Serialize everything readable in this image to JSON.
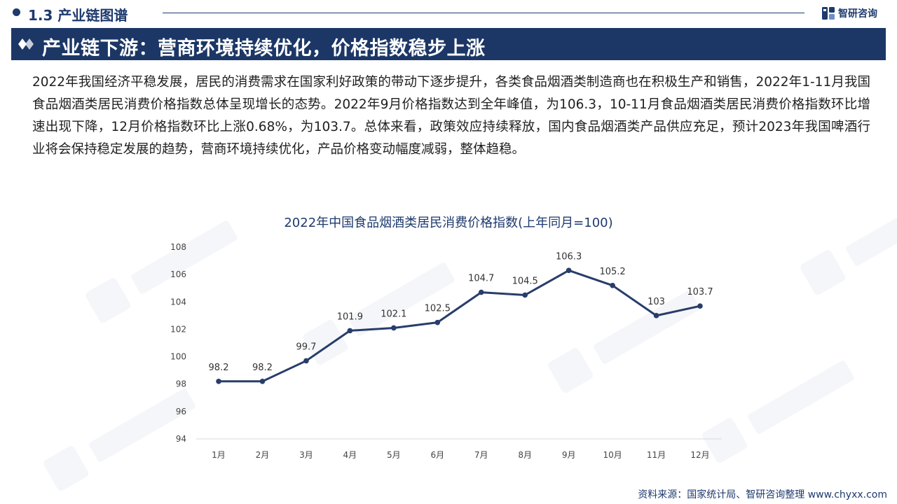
{
  "header": {
    "section_label": "1.3 产业链图谱",
    "brand_name": "智研咨询"
  },
  "banner": {
    "title": "产业链下游：营商环境持续优化，价格指数稳步上涨"
  },
  "body": {
    "paragraph": "2022年我国经济平稳发展，居民的消费需求在国家利好政策的带动下逐步提升，各类食品烟酒类制造商也在积极生产和销售，2022年1-11月我国食品烟酒类居民消费价格指数总体呈现增长的态势。2022年9月价格指数达到全年峰值，为106.3，10-11月食品烟酒类居民消费价格指数环比增速出现下降，12月价格指数环比上涨0.68%，为103.7。总体来看，政策效应持续释放，国内食品烟酒类产品供应充足，预计2023年我国啤酒行业将会保持稳定发展的趋势，营商环境持续优化，产品价格变动幅度减弱，整体趋稳。"
  },
  "chart_data": {
    "type": "line",
    "title": "2022年中国食品烟酒类居民消费价格指数(上年同月=100)",
    "categories": [
      "1月",
      "2月",
      "3月",
      "4月",
      "5月",
      "6月",
      "7月",
      "8月",
      "9月",
      "10月",
      "11月",
      "12月"
    ],
    "values": [
      98.2,
      98.2,
      99.7,
      101.9,
      102.1,
      102.5,
      104.7,
      104.5,
      106.3,
      105.2,
      103,
      103.7
    ],
    "data_labels": [
      "98.2",
      "98.2",
      "99.7",
      "101.9",
      "102.1",
      "102.5",
      "104.7",
      "104.5",
      "106.3",
      "105.2",
      "103",
      "103.7"
    ],
    "y_ticks": [
      "94",
      "96",
      "98",
      "100",
      "102",
      "104",
      "106",
      "108"
    ],
    "ylim": [
      94,
      108
    ],
    "grid": false,
    "legend": "none",
    "line_color": "#283d6b"
  },
  "footer": {
    "source": "资料来源：国家统计局、智研咨询整理  www.chyxx.com"
  },
  "colors": {
    "primary": "#1c3766",
    "banner_text": "#ffffff"
  },
  "icons": {
    "brand": "zhiyan-logo-icon",
    "banner": "double-diamond-icon",
    "section": "dot-bullet-icon"
  }
}
